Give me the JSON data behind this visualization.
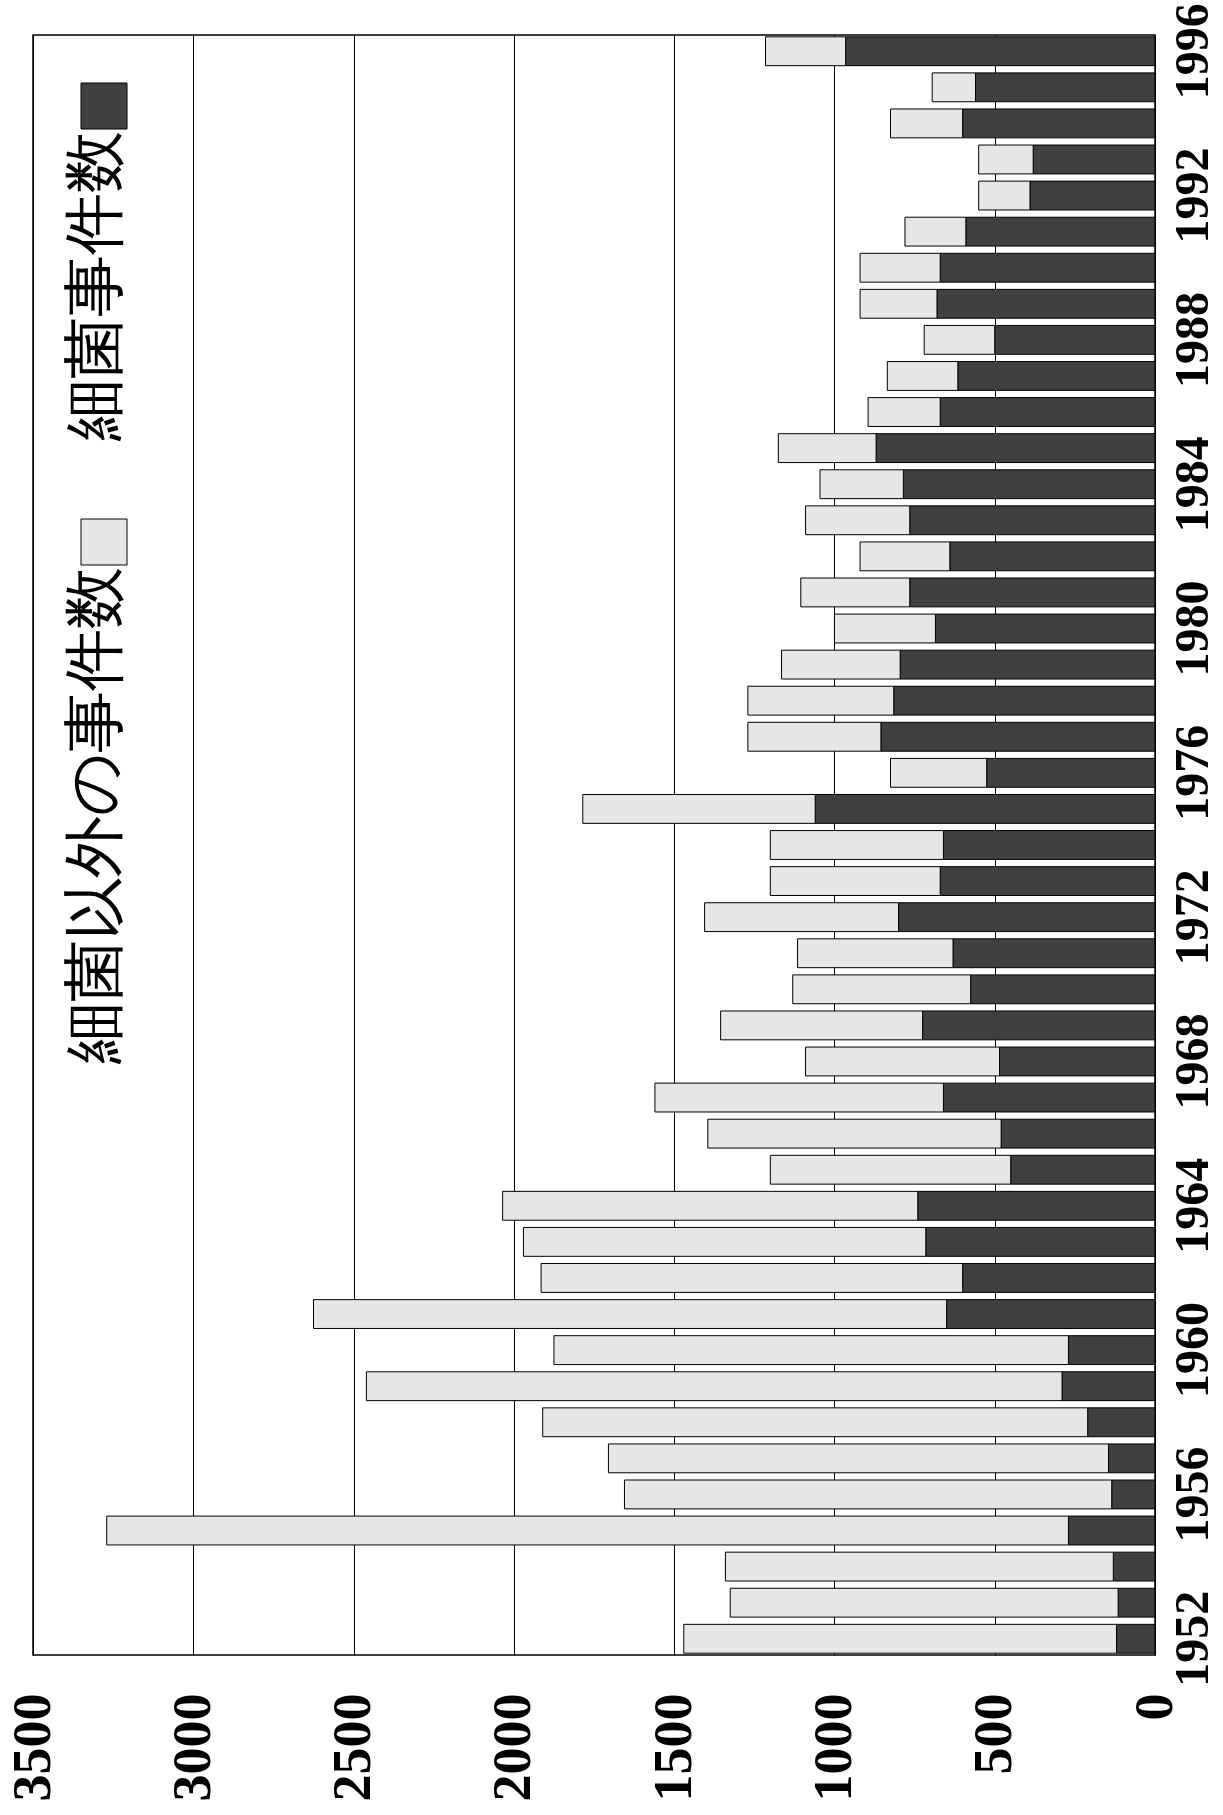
{
  "chart_data": {
    "type": "bar",
    "stacked": true,
    "orientation": "horizontal",
    "categories": [
      "1996",
      null,
      null,
      null,
      "1992",
      null,
      null,
      null,
      "1988",
      null,
      null,
      null,
      "1984",
      null,
      null,
      null,
      "1980",
      null,
      null,
      null,
      "1976",
      null,
      null,
      null,
      "1972",
      null,
      null,
      null,
      "1968",
      null,
      null,
      null,
      "1964",
      null,
      null,
      null,
      "1960",
      null,
      null,
      null,
      "1956",
      null,
      null,
      null,
      "1952"
    ],
    "series": [
      {
        "name": "細菌事件数",
        "color": "#404040",
        "values": [
          965,
          560,
          600,
          380,
          390,
          590,
          670,
          680,
          500,
          615,
          670,
          870,
          785,
          765,
          640,
          765,
          685,
          795,
          815,
          855,
          525,
          1060,
          660,
          670,
          800,
          630,
          575,
          725,
          485,
          660,
          480,
          450,
          740,
          715,
          600,
          650,
          270,
          290,
          210,
          145,
          135,
          270,
          130,
          115,
          120
        ]
      },
      {
        "name": "細菌以外の事件数",
        "color": "#e6e6e6",
        "values": [
          250,
          135,
          225,
          170,
          160,
          190,
          250,
          240,
          220,
          220,
          225,
          305,
          260,
          325,
          280,
          340,
          315,
          370,
          455,
          415,
          300,
          725,
          540,
          530,
          605,
          485,
          555,
          630,
          605,
          900,
          915,
          750,
          1295,
          1255,
          1315,
          1975,
          1605,
          2170,
          1700,
          1560,
          1520,
          3000,
          1210,
          1210,
          1350
        ]
      }
    ],
    "xlim": [
      3500,
      0
    ],
    "xticks": [
      3500,
      3000,
      2500,
      2000,
      1500,
      1000,
      500,
      0
    ],
    "grid": "x",
    "legend": "left"
  }
}
